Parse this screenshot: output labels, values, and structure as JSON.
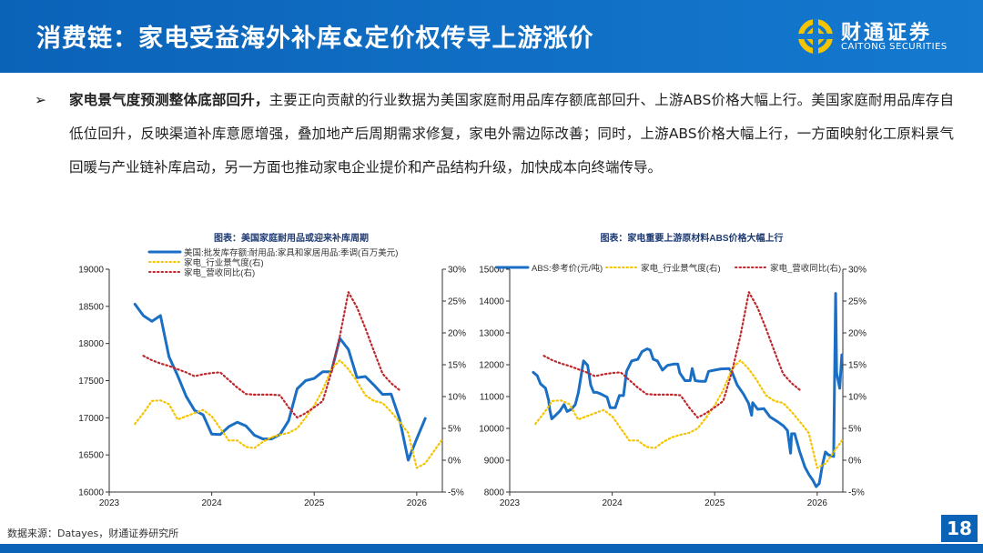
{
  "header": {
    "title": "消费链：家电受益海外补库&定价权传导上游涨价",
    "logo_cn": "财通证券",
    "logo_en": "CAITONG SECURITIES"
  },
  "body": {
    "bullet": "➢",
    "lead": "家电景气度预测整体底部回升，",
    "text": "主要正向贡献的行业数据为美国家庭耐用品库存额底部回升、上游ABS价格大幅上行。美国家庭耐用品库存自低位回升，反映渠道补库意愿增强，叠加地产后周期需求修复，家电外需边际改善；同时，上游ABS价格大幅上行，一方面映射化工原料景气回暖与产业链补库启动，另一方面也推动家电企业提价和产品结构升级，加快成本向终端传导。"
  },
  "footer": {
    "source": "数据来源：Datayes，财通证券研究所",
    "page": "18"
  },
  "colors": {
    "brand": "#0b63b8",
    "blue_series": "#1a6fc4",
    "yellow_series": "#f5c400",
    "red_series": "#c0282e"
  },
  "chart_data": [
    {
      "type": "line",
      "title": "图表：美国家庭耐用品或迎来补库周期",
      "x_ticks": [
        "2023",
        "2024",
        "2025",
        "2026"
      ],
      "xlim": [
        2023,
        2026.25
      ],
      "ylim_left": [
        16000,
        19000
      ],
      "y_ticks_left": [
        "16000",
        "16500",
        "17000",
        "17500",
        "18000",
        "18500",
        "19000"
      ],
      "ylim_right": [
        -5,
        30
      ],
      "y_ticks_right": [
        "-5%",
        "0%",
        "5%",
        "10%",
        "15%",
        "20%",
        "25%",
        "30%"
      ],
      "grid": false,
      "legend": "top",
      "series": [
        {
          "name": "美国:批发库存额:耐用品:家具和家居用品:季调(百万美元)",
          "axis": "left",
          "style": "solid",
          "start": "2023-04",
          "values": [
            18530,
            18375,
            18300,
            18375,
            17820,
            17570,
            17290,
            17100,
            17040,
            16780,
            16775,
            16880,
            16940,
            16890,
            16765,
            16715,
            16715,
            16775,
            16960,
            17390,
            17500,
            17530,
            17620,
            17620,
            18070,
            17920,
            17540,
            17555,
            17440,
            17315,
            17320,
            16980,
            16430,
            16715,
            16990
          ]
        },
        {
          "name": "家电_行业景气度(右)",
          "axis": "right",
          "style": "dotted",
          "start": "2023-04",
          "values": [
            5.7,
            7.4,
            9.3,
            9.4,
            8.8,
            6.4,
            6.9,
            7.4,
            7.9,
            6.9,
            5.0,
            3.1,
            3.1,
            2.1,
            1.9,
            2.9,
            3.6,
            4.0,
            4.3,
            5.0,
            6.7,
            8.6,
            11,
            14.3,
            15.7,
            14.3,
            12.4,
            10.2,
            9.3,
            9.0,
            7.6,
            6.0,
            4.3,
            -1.2,
            -0.5,
            1.4,
            3.3
          ]
        },
        {
          "name": "家电_营收同比(右)",
          "axis": "right",
          "style": "dotted",
          "start": "2023-05",
          "values": [
            16.4,
            15.7,
            15.2,
            14.8,
            14.3,
            13.8,
            13.2,
            13.5,
            13.7,
            13.8,
            12.6,
            11.4,
            10.4,
            10.3,
            10.3,
            10.3,
            10.2,
            8.3,
            6.7,
            7.4,
            8.3,
            9.3,
            13.8,
            19.5,
            26.4,
            24,
            20.7,
            17.1,
            13.6,
            12.1,
            11
          ]
        }
      ]
    },
    {
      "type": "line",
      "title": "图表：家电重要上游原材料ABS价格大幅上行",
      "x_ticks": [
        "2023",
        "2024",
        "2025",
        "2026"
      ],
      "xlim": [
        2023,
        2026.25
      ],
      "ylim_left": [
        8000,
        15000
      ],
      "y_ticks_left": [
        "8000",
        "9000",
        "10000",
        "11000",
        "12000",
        "13000",
        "14000",
        "15000"
      ],
      "ylim_right": [
        -5,
        30
      ],
      "y_ticks_right": [
        "-5%",
        "0%",
        "5%",
        "10%",
        "15%",
        "20%",
        "25%",
        "30%"
      ],
      "grid": false,
      "legend": "top",
      "series": [
        {
          "name": "ABS:参考价(元/吨)",
          "axis": "left",
          "style": "solid",
          "points": [
            [
              2023.23,
              11760
            ],
            [
              2023.27,
              11650
            ],
            [
              2023.3,
              11400
            ],
            [
              2023.35,
              11260
            ],
            [
              2023.38,
              10880
            ],
            [
              2023.39,
              10600
            ],
            [
              2023.41,
              10300
            ],
            [
              2023.45,
              10420
            ],
            [
              2023.49,
              10550
            ],
            [
              2023.53,
              10750
            ],
            [
              2023.56,
              10530
            ],
            [
              2023.6,
              10600
            ],
            [
              2023.64,
              10750
            ],
            [
              2023.67,
              11130
            ],
            [
              2023.72,
              12120
            ],
            [
              2023.76,
              11980
            ],
            [
              2023.79,
              11360
            ],
            [
              2023.82,
              11130
            ],
            [
              2023.85,
              11130
            ],
            [
              2023.89,
              11080
            ],
            [
              2023.95,
              10980
            ],
            [
              2023.98,
              10650
            ],
            [
              2024.03,
              10650
            ],
            [
              2024.07,
              11030
            ],
            [
              2024.11,
              11030
            ],
            [
              2024.14,
              11790
            ],
            [
              2024.19,
              12120
            ],
            [
              2024.25,
              12170
            ],
            [
              2024.29,
              12410
            ],
            [
              2024.34,
              12500
            ],
            [
              2024.37,
              12460
            ],
            [
              2024.4,
              12170
            ],
            [
              2024.44,
              12120
            ],
            [
              2024.49,
              11830
            ],
            [
              2024.54,
              11980
            ],
            [
              2024.6,
              12020
            ],
            [
              2024.64,
              12020
            ],
            [
              2024.66,
              11740
            ],
            [
              2024.71,
              11500
            ],
            [
              2024.76,
              11500
            ],
            [
              2024.78,
              11880
            ],
            [
              2024.81,
              11500
            ],
            [
              2024.86,
              11480
            ],
            [
              2024.91,
              11480
            ],
            [
              2024.94,
              11790
            ],
            [
              2025.0,
              11830
            ],
            [
              2025.06,
              11870
            ],
            [
              2025.14,
              11880
            ],
            [
              2025.17,
              11760
            ],
            [
              2025.22,
              11360
            ],
            [
              2025.28,
              11080
            ],
            [
              2025.33,
              10790
            ],
            [
              2025.36,
              10410
            ],
            [
              2025.37,
              10810
            ],
            [
              2025.42,
              10600
            ],
            [
              2025.48,
              10620
            ],
            [
              2025.54,
              10360
            ],
            [
              2025.61,
              10220
            ],
            [
              2025.67,
              10080
            ],
            [
              2025.71,
              9930
            ],
            [
              2025.74,
              9220
            ],
            [
              2025.75,
              9830
            ],
            [
              2025.78,
              9830
            ],
            [
              2025.83,
              9260
            ],
            [
              2025.88,
              8790
            ],
            [
              2025.92,
              8550
            ],
            [
              2025.96,
              8360
            ],
            [
              2025.99,
              8170
            ],
            [
              2026.02,
              8270
            ],
            [
              2026.05,
              8840
            ],
            [
              2026.08,
              9260
            ],
            [
              2026.11,
              9170
            ],
            [
              2026.16,
              9120
            ],
            [
              2026.18,
              14240
            ],
            [
              2026.19,
              11740
            ],
            [
              2026.22,
              11260
            ],
            [
              2026.24,
              12310
            ]
          ]
        },
        {
          "name": "家电_行业景气度(右)",
          "axis": "right",
          "style": "dotted",
          "start": "2023-04",
          "values": [
            5.7,
            7.4,
            9.3,
            9.4,
            8.8,
            6.4,
            6.9,
            7.4,
            7.9,
            6.9,
            5.0,
            3.1,
            3.1,
            2.1,
            1.9,
            2.9,
            3.6,
            4.0,
            4.3,
            5.0,
            6.7,
            8.6,
            11,
            14.3,
            15.7,
            14.3,
            12.4,
            10.2,
            9.3,
            9.0,
            7.6,
            6.0,
            4.3,
            -1.2,
            -0.5,
            1.4,
            3.3
          ]
        },
        {
          "name": "家电_营收同比(右)",
          "axis": "right",
          "style": "dotted",
          "start": "2023-05",
          "values": [
            16.4,
            15.7,
            15.2,
            14.8,
            14.3,
            13.8,
            13.2,
            13.5,
            13.7,
            13.8,
            12.6,
            11.4,
            10.4,
            10.3,
            10.3,
            10.3,
            10.2,
            8.3,
            6.7,
            7.4,
            8.3,
            9.3,
            13.8,
            19.5,
            26.4,
            24,
            20.7,
            17.1,
            13.6,
            12.1,
            11
          ]
        }
      ]
    }
  ]
}
